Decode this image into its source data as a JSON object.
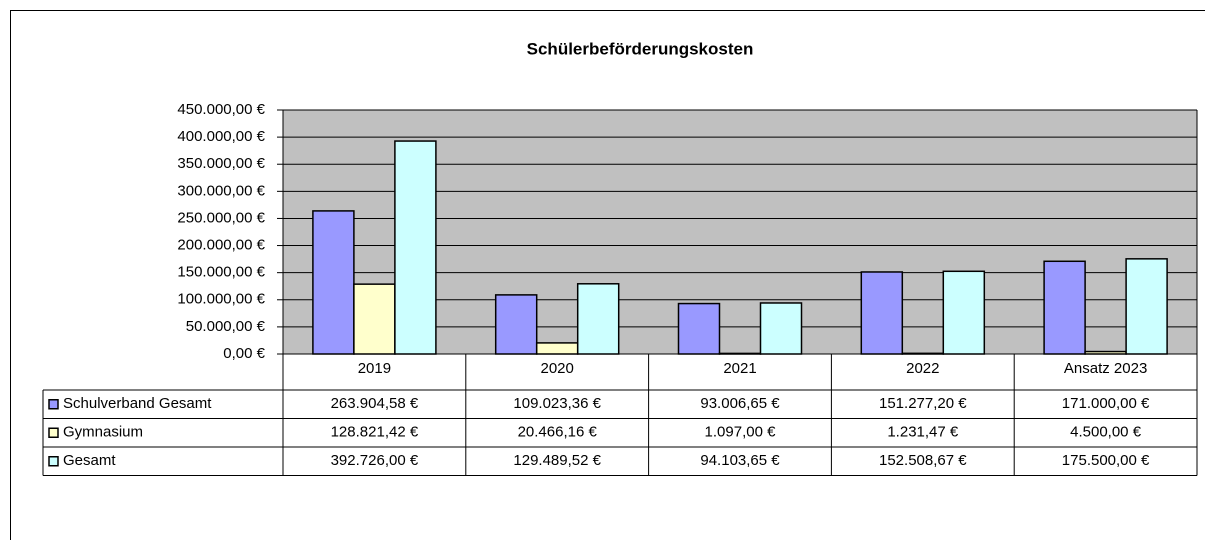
{
  "chart_data": {
    "type": "bar",
    "title": "Schülerbeförderungskosten",
    "categories": [
      "2019",
      "2020",
      "2021",
      "2022",
      "Ansatz 2023"
    ],
    "series": [
      {
        "name": "Schulverband Gesamt",
        "color": "#9999ff",
        "values": [
          263904.58,
          109023.36,
          93006.65,
          151277.2,
          171000.0
        ],
        "value_labels": [
          "263.904,58 €",
          "109.023,36 €",
          "93.006,65 €",
          "151.277,20 €",
          "171.000,00 €"
        ]
      },
      {
        "name": "Gymnasium",
        "color": "#ffffcc",
        "values": [
          128821.42,
          20466.16,
          1097.0,
          1231.47,
          4500.0
        ],
        "value_labels": [
          "128.821,42 €",
          "20.466,16 €",
          "1.097,00 €",
          "1.231,47 €",
          "4.500,00 €"
        ]
      },
      {
        "name": "Gesamt",
        "color": "#ccffff",
        "values": [
          392726.0,
          129489.52,
          94103.65,
          152508.67,
          175500.0
        ],
        "value_labels": [
          "392.726,00 €",
          "129.489,52 €",
          "94.103,65 €",
          "152.508,67 €",
          "175.500,00 €"
        ]
      }
    ],
    "ylim": [
      0,
      450000
    ],
    "yticks": [
      {
        "value": 0,
        "label": "0,00 €"
      },
      {
        "value": 50000,
        "label": "50.000,00 €"
      },
      {
        "value": 100000,
        "label": "100.000,00 €"
      },
      {
        "value": 150000,
        "label": "150.000,00 €"
      },
      {
        "value": 200000,
        "label": "200.000,00 €"
      },
      {
        "value": 250000,
        "label": "250.000,00 €"
      },
      {
        "value": 300000,
        "label": "300.000,00 €"
      },
      {
        "value": 350000,
        "label": "350.000,00 €"
      },
      {
        "value": 400000,
        "label": "400.000,00 €"
      },
      {
        "value": 450000,
        "label": "450.000,00 €"
      }
    ],
    "grid": true,
    "plot_background": "#c0c0c0"
  }
}
